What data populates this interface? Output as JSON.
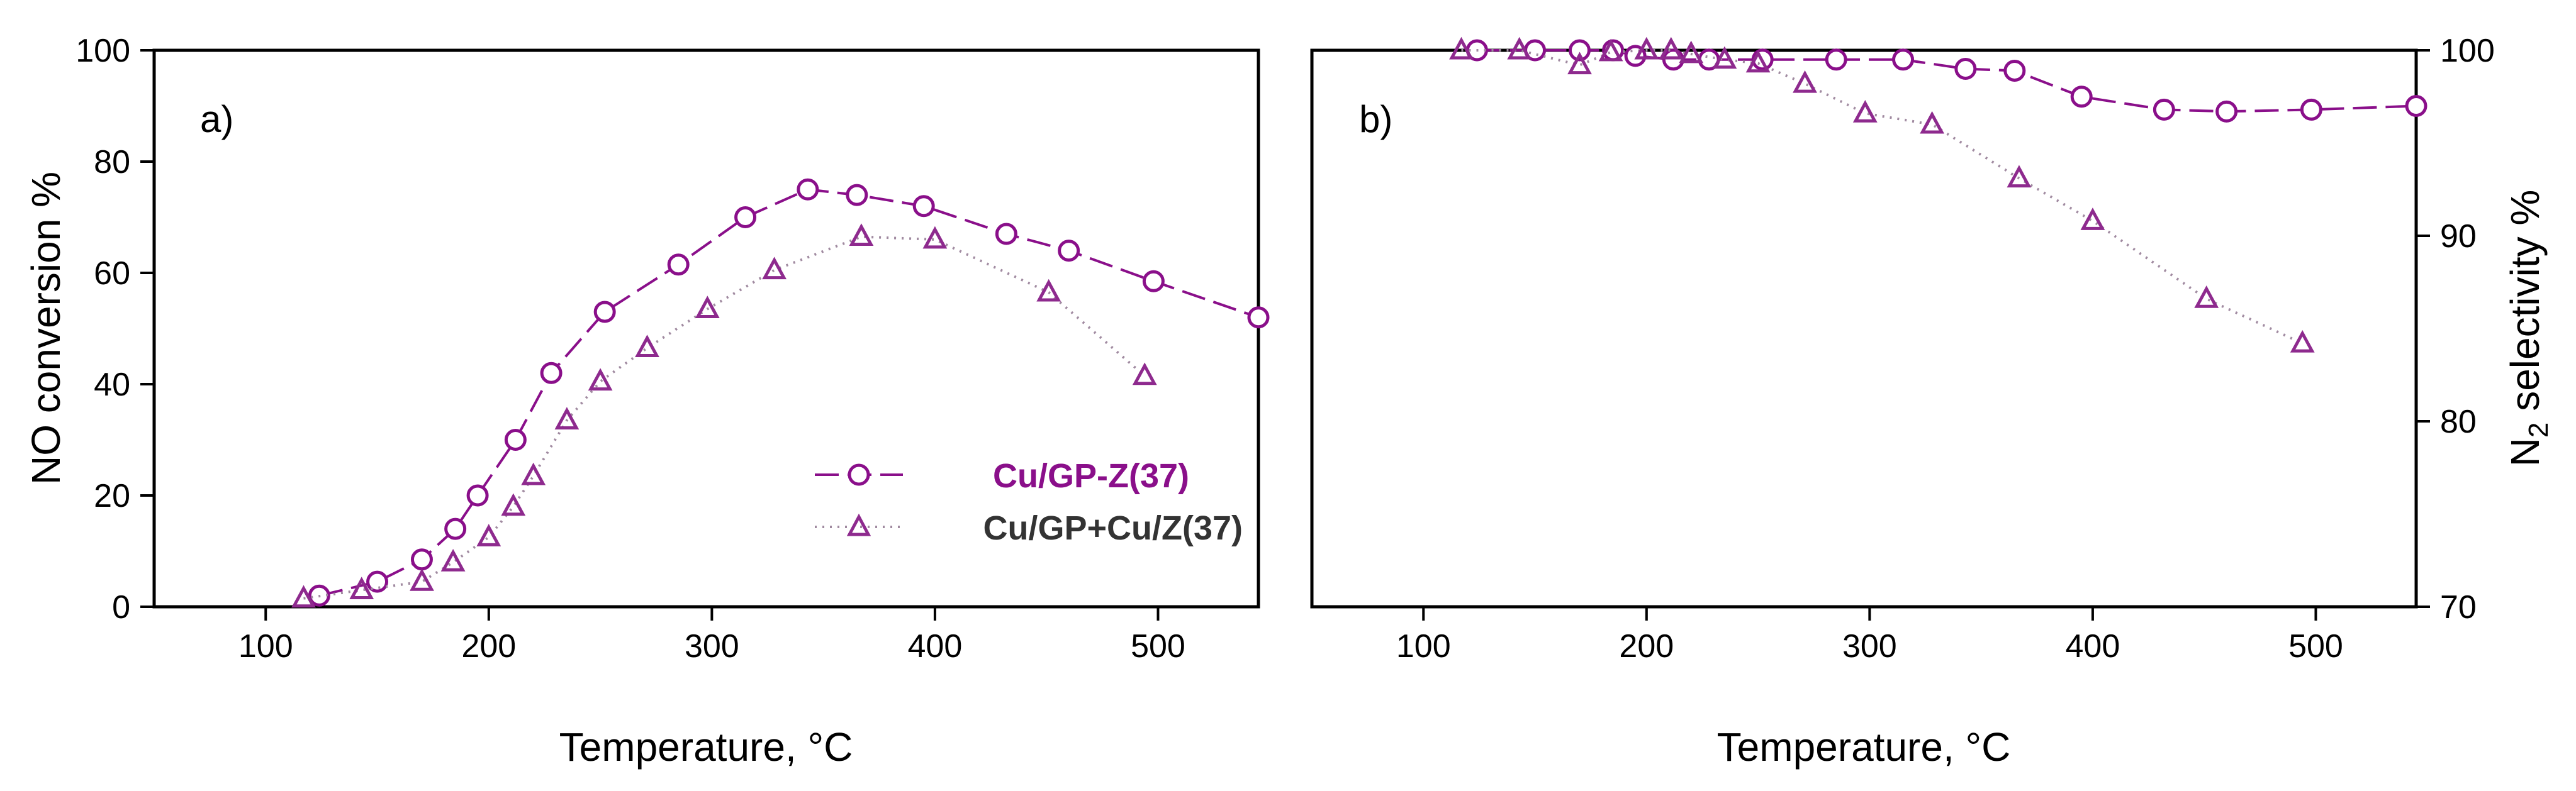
{
  "colors": {
    "series1": "#8a0f8a",
    "series2": "#8e2a8e",
    "legend2_text": "#333333"
  },
  "chart_data": [
    {
      "type": "line",
      "panel_label": "a)",
      "xlabel": "Temperature, °C",
      "ylabel": "NO conversion %",
      "xlim": [
        50,
        545
      ],
      "ylim": [
        0,
        100
      ],
      "x_ticks": [
        "100",
        "200",
        "300",
        "400",
        "500"
      ],
      "y_ticks": [
        "0",
        "20",
        "40",
        "60",
        "80",
        "100"
      ],
      "legend_position": "center-right",
      "series": [
        {
          "name": "Cu/GP-Z(37)",
          "marker": "circle",
          "line": "dashed",
          "x": [
            124,
            150,
            170,
            185,
            195,
            212,
            228,
            252,
            285,
            315,
            343,
            365,
            395,
            432,
            460,
            498,
            545
          ],
          "y": [
            2,
            4.5,
            8.5,
            14,
            20,
            30,
            42,
            53,
            61.5,
            70,
            75,
            74,
            72,
            67,
            64,
            58.5,
            52
          ]
        },
        {
          "name": "Cu/GP+Cu/Z(37)",
          "marker": "triangle",
          "line": "dotted",
          "x": [
            117,
            143,
            170,
            184,
            200,
            211,
            220,
            235,
            250,
            271,
            298,
            328,
            367,
            400,
            451,
            494
          ],
          "y": [
            1.5,
            3,
            4.5,
            8,
            12.5,
            18,
            23.5,
            33.5,
            40.5,
            46.5,
            53.5,
            60.5,
            66.5,
            66,
            56.5,
            41.5
          ]
        }
      ]
    },
    {
      "type": "line",
      "panel_label": "b)",
      "xlabel": "Temperature, °C",
      "ylabel": "N",
      "ylabel_subscript": "2",
      "ylabel_suffix": " selectivity %",
      "xlim": [
        50,
        545
      ],
      "ylim": [
        70,
        100
      ],
      "x_ticks": [
        "100",
        "200",
        "300",
        "400",
        "500"
      ],
      "y_ticks": [
        "70",
        "80",
        "90",
        "100"
      ],
      "series": [
        {
          "name": "Cu/GP-Z(37)",
          "marker": "circle",
          "line": "dashed",
          "x": [
            124,
            150,
            170,
            185,
            195,
            212,
            228,
            252,
            285,
            315,
            343,
            365,
            395,
            432,
            460,
            498,
            545
          ],
          "y": [
            100,
            100,
            100,
            100,
            99.7,
            99.5,
            99.5,
            99.5,
            99.5,
            99.5,
            99,
            98.9,
            97.5,
            96.8,
            96.7,
            96.8,
            97
          ]
        },
        {
          "name": "Cu/GP+Cu/Z(37)",
          "marker": "triangle",
          "line": "dotted",
          "x": [
            117,
            143,
            170,
            184,
            200,
            211,
            220,
            235,
            250,
            271,
            298,
            328,
            367,
            400,
            451,
            494
          ],
          "y": [
            100,
            100,
            99.2,
            99.9,
            100,
            100,
            99.8,
            99.5,
            99.3,
            98.2,
            96.6,
            96,
            93.1,
            90.8,
            86.6,
            84.2
          ]
        }
      ]
    }
  ]
}
